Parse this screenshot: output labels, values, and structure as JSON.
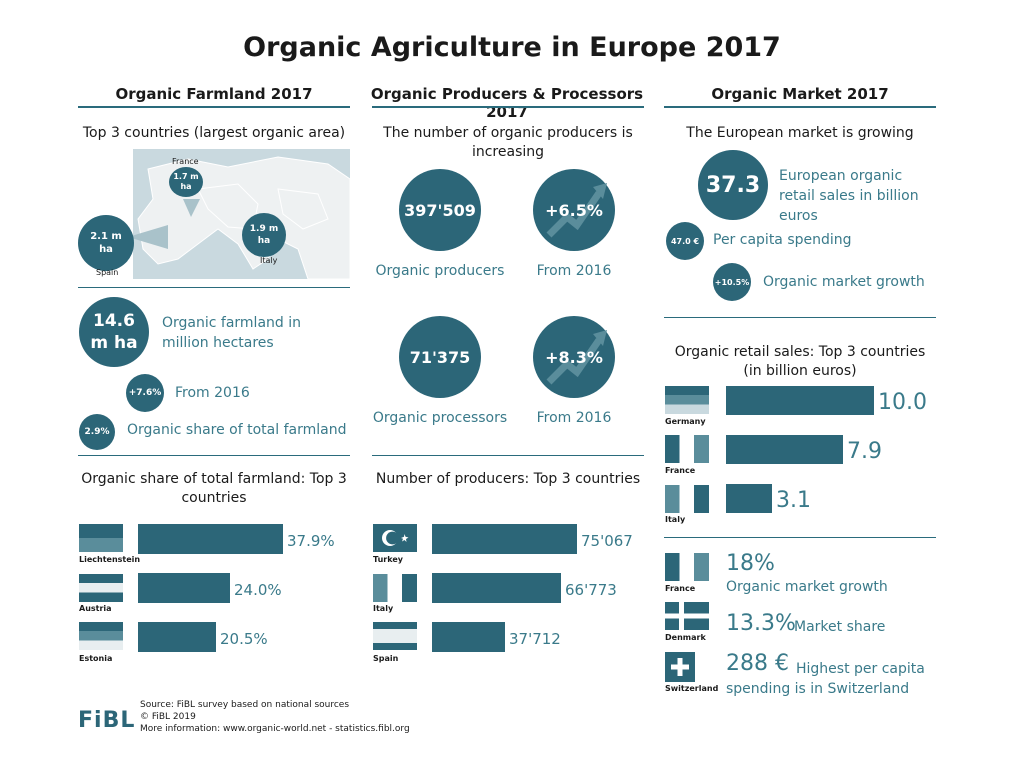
{
  "title": "Organic Agriculture in Europe 2017",
  "farmland": {
    "header": "Organic Farmland 2017",
    "map_title": "Top 3 countries (largest organic area)",
    "map": {
      "france_label": "France",
      "france_value": "1.7 m ha",
      "spain_label": "Spain",
      "spain_value": "2.1 m ha",
      "italy_label": "Italy",
      "italy_value": "1.9 m ha"
    },
    "total_value": "14.6 m ha",
    "total_label": "Organic farmland in million hectares",
    "growth_value": "+7.6%",
    "growth_label": "From 2016",
    "share_value": "2.9%",
    "share_label": "Organic share of total farmland"
  },
  "producers": {
    "header": "Organic Producers & Processors 2017",
    "subtitle": "The number of organic producers is increasing",
    "producers_value": "397'509",
    "producers_label": "Organic producers",
    "producers_growth": "+6.5%",
    "producers_growth_label": "From 2016",
    "processors_value": "71'375",
    "processors_label": "Organic processors",
    "processors_growth": "+8.3%",
    "processors_growth_label": "From 2016"
  },
  "market": {
    "header": "Organic Market 2017",
    "subtitle": "The European market is growing",
    "sales_value": "37.3",
    "sales_label": "European organic retail sales in billion euros",
    "per_capita_value": "47.0 €",
    "per_capita_label": "Per capita spending",
    "growth_value": "+10.5%",
    "growth_label": "Organic market growth",
    "facts": [
      {
        "country": "France",
        "value": "18%",
        "label": "Organic market growth"
      },
      {
        "country": "Denmark",
        "value": "13.3%",
        "label": "Market share"
      },
      {
        "country": "Switzerland",
        "value": "288 €",
        "label": "Highest per capita spending is in Switzerland"
      }
    ]
  },
  "chart_data": [
    {
      "type": "bar",
      "title": "Organic share of total farmland: Top 3 countries",
      "categories": [
        "Liechtenstein",
        "Austria",
        "Estonia"
      ],
      "values": [
        37.9,
        24.0,
        20.5
      ],
      "labels": [
        "37.9%",
        "24.0%",
        "20.5%"
      ],
      "xlim": [
        0,
        37.9
      ]
    },
    {
      "type": "bar",
      "title": "Number of producers: Top 3 countries",
      "categories": [
        "Turkey",
        "Italy",
        "Spain"
      ],
      "values": [
        75067,
        66773,
        37712
      ],
      "labels": [
        "75'067",
        "66'773",
        "37'712"
      ],
      "xlim": [
        0,
        75067
      ]
    },
    {
      "type": "bar",
      "title": "Organic retail sales: Top 3 countries (in billion euros)",
      "categories": [
        "Germany",
        "France",
        "Italy"
      ],
      "values": [
        10.0,
        7.9,
        3.1
      ],
      "labels": [
        "10.0",
        "7.9",
        "3.1"
      ],
      "xlim": [
        0,
        10.0
      ]
    }
  ],
  "footer": {
    "logo": "FiBL",
    "source": "Source: FiBL survey based on national sources",
    "copyright": "© FiBL 2019",
    "more": "More information: www.organic-world.net - statistics.fibl.org"
  },
  "colors": {
    "accent": "#2c6678",
    "text_teal": "#3a7a8a"
  }
}
